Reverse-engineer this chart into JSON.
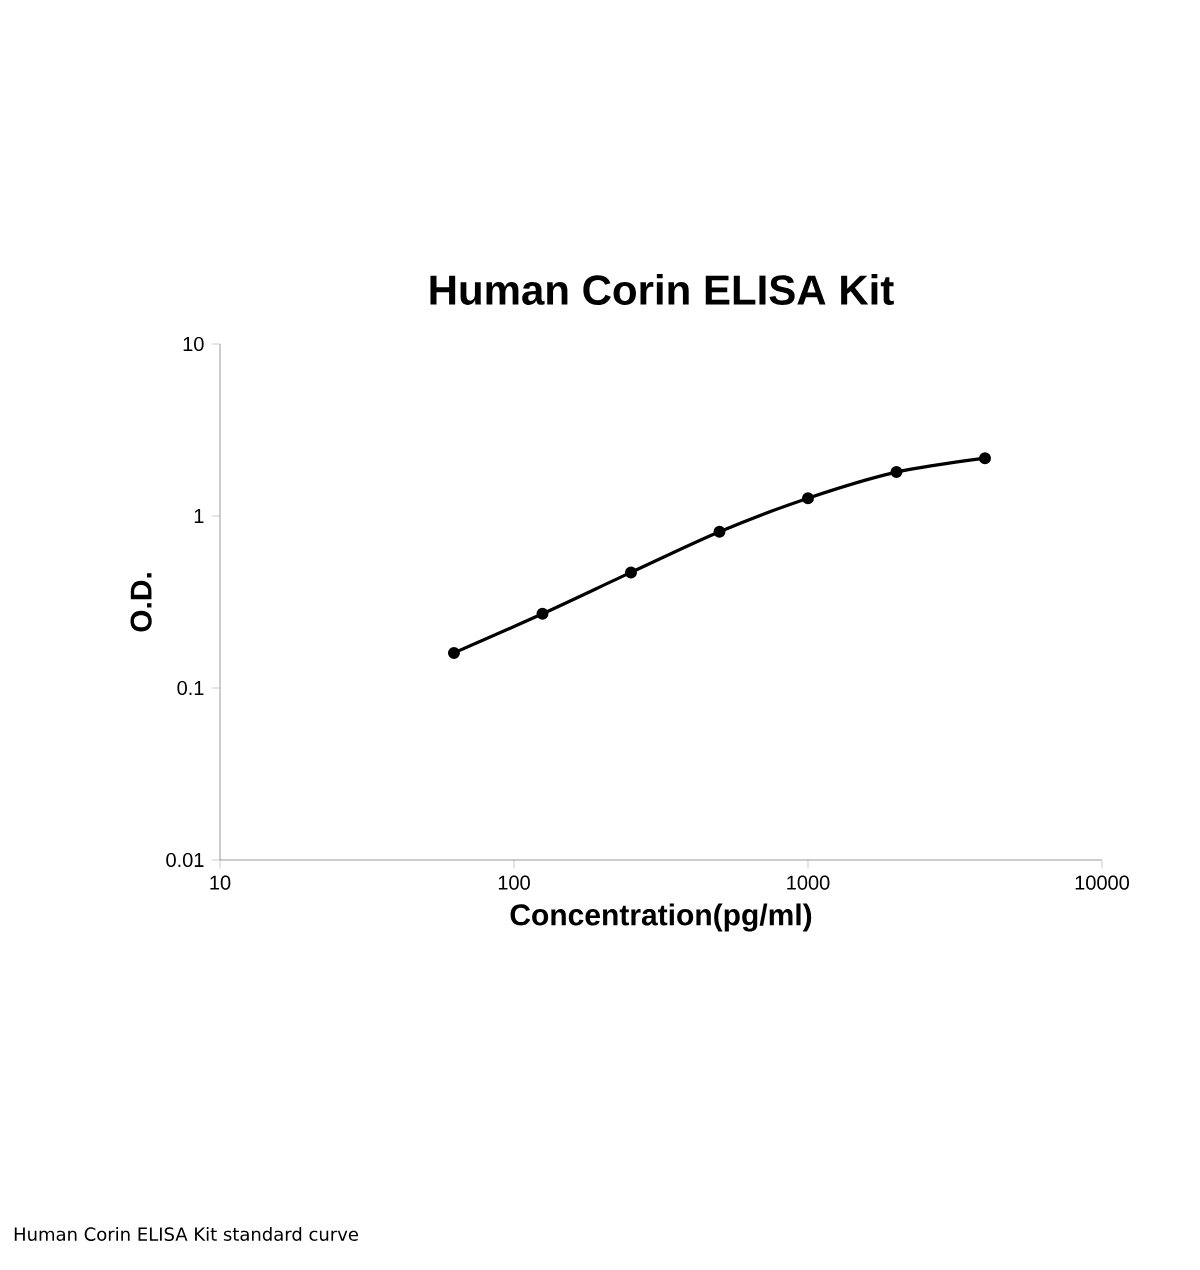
{
  "chart_data": {
    "type": "line",
    "title": "Human Corin ELISA Kit",
    "xlabel": "Concentration(pg/ml)",
    "ylabel": "O.D.",
    "annotations": [
      "Human Corin ELISA Kit standard curve"
    ],
    "x": [
      62.5,
      125,
      250,
      500,
      1000,
      2000,
      4000
    ],
    "series": [
      {
        "color": "#000000",
        "values": [
          0.16,
          0.27,
          0.47,
          0.81,
          1.27,
          1.8,
          2.17
        ]
      }
    ],
    "log": "xy",
    "marker": "circle",
    "line_style": "solid",
    "xlim": [
      10,
      10000
    ],
    "ylim": [
      0.01,
      10
    ],
    "xticks": [
      10,
      100,
      1000,
      10000
    ],
    "yticks": [
      0.01,
      0.1,
      1,
      10
    ]
  }
}
